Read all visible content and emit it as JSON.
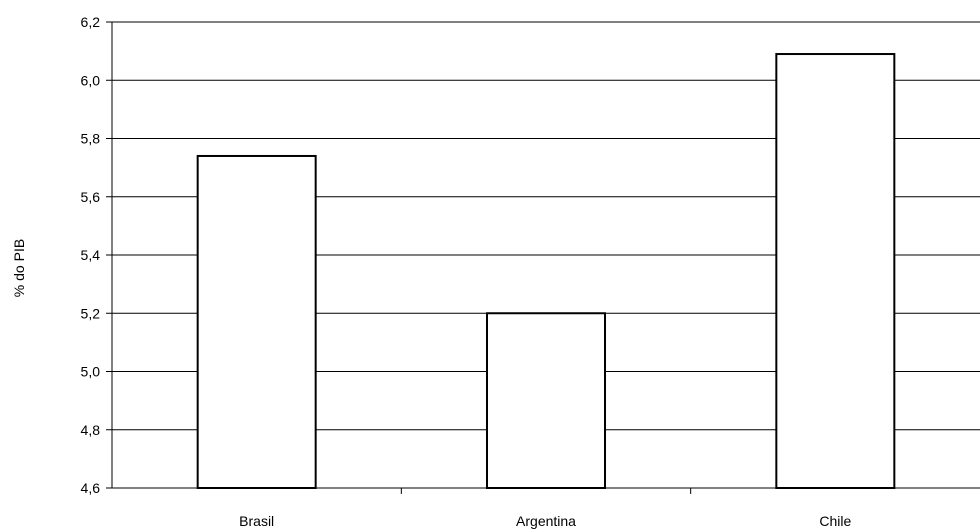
{
  "chart_data": {
    "type": "bar",
    "title": "",
    "xlabel": "",
    "ylabel": "% do PIB",
    "categories": [
      "Brasil",
      "Argentina",
      "Chile"
    ],
    "values": [
      5.74,
      5.2,
      6.09
    ],
    "ylim": [
      4.6,
      6.2
    ],
    "yticks": [
      "4,6",
      "4,8",
      "5,0",
      "5,2",
      "5,4",
      "5,6",
      "5,8",
      "6,0",
      "6,2"
    ],
    "grid": true,
    "legend": "none",
    "colors": {
      "bar_fill": "#ffffff",
      "bar_stroke": "#000000",
      "grid": "#000000",
      "axis": "#000000"
    }
  }
}
